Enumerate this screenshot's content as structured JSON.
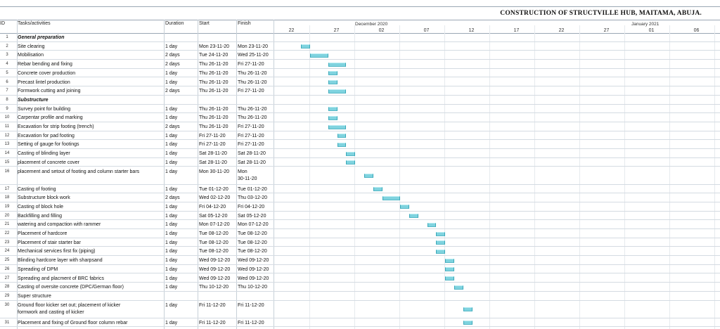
{
  "title": "CONSTRUCTION OF STRUCTVILLE HUB, MAITAMA, ABUJA.",
  "columns": {
    "id": "ID",
    "task": "Tasks/activities",
    "duration": "Duration",
    "start": "Start",
    "finish": "Finish"
  },
  "timeline": {
    "months": [
      {
        "label": "December 2020"
      },
      {
        "label": "January 2021"
      }
    ],
    "days": [
      "22",
      "27",
      "02",
      "07",
      "12",
      "17",
      "22",
      "27",
      "01",
      "06"
    ]
  },
  "colors": {
    "bar": "#7fd3df",
    "bar_edge": "#3aa7b8",
    "grid": "#d4dbe2"
  },
  "tasks": [
    {
      "id": "1",
      "name": "General preparation",
      "group": true,
      "duration": "",
      "start": "",
      "finish": ""
    },
    {
      "id": "2",
      "name": "Site clearing",
      "duration": "1 day",
      "start": "Mon 23-11-20",
      "finish": "Mon 23-11-20"
    },
    {
      "id": "3",
      "name": "Mobilisation",
      "duration": "2 days",
      "start": "Tue 24-11-20",
      "finish": "Wed 25-11-20"
    },
    {
      "id": "4",
      "name": "Rebar bending and fixing",
      "duration": "2 days",
      "start": "Thu 26-11-20",
      "finish": "Fri 27-11-20"
    },
    {
      "id": "5",
      "name": "Concrete cover production",
      "duration": "1 day",
      "start": "Thu 26-11-20",
      "finish": "Thu 26-11-20"
    },
    {
      "id": "6",
      "name": "Precast lintel production",
      "duration": "1 day",
      "start": "Thu 26-11-20",
      "finish": "Thu 26-11-20"
    },
    {
      "id": "7",
      "name": "Formwork cutting and joining",
      "duration": "2 days",
      "start": "Thu 26-11-20",
      "finish": "Fri 27-11-20"
    },
    {
      "id": "8",
      "name": "Substructure",
      "group": true,
      "duration": "",
      "start": "",
      "finish": ""
    },
    {
      "id": "9",
      "name": "Survey point for building",
      "duration": "1 day",
      "start": "Thu 26-11-20",
      "finish": "Thu 26-11-20"
    },
    {
      "id": "10",
      "name": "Carpentar profile and marking",
      "duration": "1 day",
      "start": "Thu 26-11-20",
      "finish": "Thu 26-11-20"
    },
    {
      "id": "11",
      "name": "Excavation for strip footing (trench)",
      "duration": "2 days",
      "start": "Thu 26-11-20",
      "finish": "Fri 27-11-20"
    },
    {
      "id": "12",
      "name": "Excavation for pad footing",
      "duration": "1 day",
      "start": "Fri 27-11-20",
      "finish": "Fri 27-11-20"
    },
    {
      "id": "13",
      "name": "Setting of gauge for footings",
      "duration": "1 day",
      "start": "Fri 27-11-20",
      "finish": "Fri 27-11-20"
    },
    {
      "id": "14",
      "name": "Casting of blinding layer",
      "duration": "1 day",
      "start": "Sat 28-11-20",
      "finish": "Sat 28-11-20"
    },
    {
      "id": "15",
      "name": "placement of concrete cover",
      "duration": "1 day",
      "start": "Sat 28-11-20",
      "finish": "Sat 28-11-20"
    },
    {
      "id": "16",
      "name": "placement and setout of footing and column starter bars",
      "duration": "1 day",
      "start": "Mon 30-11-20",
      "finish": "Mon",
      "finish2": "30-11-20"
    },
    {
      "id": "17",
      "name": "Casting of footing",
      "duration": "1 day",
      "start": "Tue 01-12-20",
      "finish": "Tue 01-12-20"
    },
    {
      "id": "18",
      "name": "Substructure block work",
      "duration": "2 days",
      "start": "Wed 02-12-20",
      "finish": "Thu 03-12-20"
    },
    {
      "id": "19",
      "name": "Casting of block hole",
      "duration": "1 day",
      "start": "Fri 04-12-20",
      "finish": "Fri 04-12-20"
    },
    {
      "id": "20",
      "name": "Backfilling and filling",
      "duration": "1 day",
      "start": "Sat 05-12-20",
      "finish": "Sat 05-12-20"
    },
    {
      "id": "21",
      "name": "watering and compaction with rammer",
      "duration": "1 day",
      "start": "Mon 07-12-20",
      "finish": "Mon 07-12-20"
    },
    {
      "id": "22",
      "name": "Placement of hardcore",
      "duration": "1 day",
      "start": "Tue 08-12-20",
      "finish": "Tue 08-12-20"
    },
    {
      "id": "23",
      "name": "Placement of stair starter bar",
      "duration": "1 day",
      "start": "Tue 08-12-20",
      "finish": "Tue 08-12-20"
    },
    {
      "id": "24",
      "name": "Mechanical services first fix (piping)",
      "duration": "1 day",
      "start": "Tue 08-12-20",
      "finish": "Tue 08-12-20"
    },
    {
      "id": "25",
      "name": "Blinding hardcore layer with sharpsand",
      "duration": "1 day",
      "start": "Wed 09-12-20",
      "finish": "Wed 09-12-20"
    },
    {
      "id": "26",
      "name": "Spreading of DPM",
      "duration": "1 day",
      "start": "Wed 09-12-20",
      "finish": "Wed 09-12-20"
    },
    {
      "id": "27",
      "name": "Spreading and placment of BRC fabrics",
      "duration": "1 day",
      "start": "Wed 09-12-20",
      "finish": "Wed 09-12-20"
    },
    {
      "id": "28",
      "name": "Casting of oversite concrete (DPC/German floor)",
      "duration": "1 day",
      "start": "Thu 10-12-20",
      "finish": "Thu 10-12-20"
    },
    {
      "id": "29",
      "name": "Super structure",
      "group": false,
      "duration": "",
      "start": "",
      "finish": ""
    },
    {
      "id": "30",
      "name": "Ground floor kicker set out; placement of kicker",
      "name2": "formwork and casting of kicker",
      "duration": "1 day",
      "start": "Fri 11-12-20",
      "finish": "Fri 11-12-20"
    },
    {
      "id": "31",
      "name": "Placement and fixing of Ground floor column rebar",
      "duration": "1 day",
      "start": "Fri 11-12-20",
      "finish": "Fri 11-12-20"
    }
  ]
}
